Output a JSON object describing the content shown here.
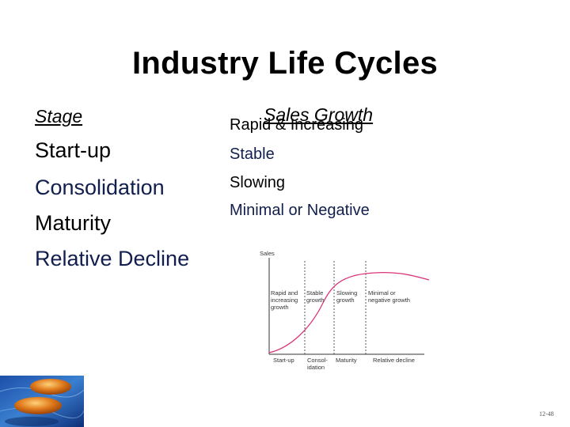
{
  "title": "Industry Life Cycles",
  "columns": {
    "stage_header": "Stage",
    "growth_header": "Sales Growth"
  },
  "stages": [
    "Start-up",
    "Consolidation",
    "Maturity",
    "Relative Decline"
  ],
  "growth": [
    "Rapid & Increasing",
    "Stable",
    "Slowing",
    "Minimal or Negative"
  ],
  "diagram": {
    "y_label": "Sales",
    "phase_labels": [
      [
        "Rapid and",
        "increasing",
        "growth"
      ],
      [
        "Stable",
        "growth"
      ],
      [
        "Slowing",
        "growth"
      ],
      [
        "Minimal or",
        "negative growth"
      ]
    ],
    "x_labels": [
      [
        "Start-up"
      ],
      [
        "Consol-",
        "idation"
      ],
      [
        "Maturity"
      ],
      [
        "Relative decline"
      ]
    ],
    "curve_color": "#d9357a"
  },
  "slide_number": "12-48",
  "colors": {
    "dark_navy": "#111e4e"
  }
}
